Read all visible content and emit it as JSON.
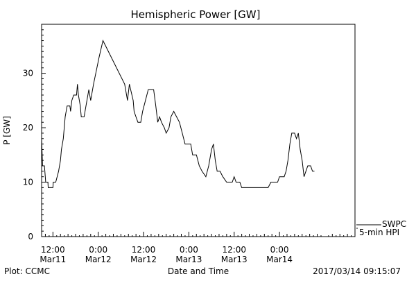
{
  "chart_data": {
    "type": "line",
    "title": "Hemispheric Power [GW]",
    "xlabel": "Date and Time",
    "ylabel": "P [GW]",
    "ylim": [
      0,
      39
    ],
    "xlim": [
      "2017-03-11 09:00",
      "2017-03-14 20:00"
    ],
    "yticks": [
      0,
      10,
      20,
      30
    ],
    "xticks": [
      {
        "time": "2017-03-11 12:00",
        "line1": "12:00",
        "line2": "Mar11"
      },
      {
        "time": "2017-03-12 00:00",
        "line1": "0:00",
        "line2": "Mar12"
      },
      {
        "time": "2017-03-12 12:00",
        "line1": "12:00",
        "line2": "Mar12"
      },
      {
        "time": "2017-03-13 00:00",
        "line1": "0:00",
        "line2": "Mar13"
      },
      {
        "time": "2017-03-13 12:00",
        "line1": "12:00",
        "line2": "Mar13"
      },
      {
        "time": "2017-03-14 00:00",
        "line1": "0:00",
        "line2": "Mar14"
      }
    ],
    "grid": false,
    "legend_placement": "bottom-right, outside plot",
    "series": [
      {
        "name": "SWPC",
        "values": []
      },
      {
        "name": "5-min HPI",
        "points": [
          [
            "2017-03-11 09:00",
            18
          ],
          [
            "2017-03-11 09:15",
            13
          ],
          [
            "2017-03-11 09:45",
            13
          ],
          [
            "2017-03-11 10:05",
            10
          ],
          [
            "2017-03-11 10:40",
            10
          ],
          [
            "2017-03-11 10:45",
            9
          ],
          [
            "2017-03-11 12:00",
            9
          ],
          [
            "2017-03-11 12:05",
            10
          ],
          [
            "2017-03-11 12:45",
            10
          ],
          [
            "2017-03-11 13:30",
            12
          ],
          [
            "2017-03-11 14:00",
            14
          ],
          [
            "2017-03-11 14:15",
            16
          ],
          [
            "2017-03-11 14:45",
            18
          ],
          [
            "2017-03-11 15:15",
            22
          ],
          [
            "2017-03-11 15:45",
            24
          ],
          [
            "2017-03-11 16:30",
            24
          ],
          [
            "2017-03-11 16:40",
            23
          ],
          [
            "2017-03-11 17:00",
            25
          ],
          [
            "2017-03-11 17:30",
            26
          ],
          [
            "2017-03-11 18:15",
            26
          ],
          [
            "2017-03-11 18:30",
            28
          ],
          [
            "2017-03-11 18:45",
            26
          ],
          [
            "2017-03-11 19:15",
            24
          ],
          [
            "2017-03-11 19:30",
            22
          ],
          [
            "2017-03-11 20:15",
            22
          ],
          [
            "2017-03-11 20:45",
            24
          ],
          [
            "2017-03-11 21:30",
            27
          ],
          [
            "2017-03-11 22:00",
            25
          ],
          [
            "2017-03-11 22:45",
            28
          ],
          [
            "2017-03-12 00:15",
            33
          ],
          [
            "2017-03-12 01:15",
            36
          ],
          [
            "2017-03-12 07:00",
            28
          ],
          [
            "2017-03-12 07:45",
            25
          ],
          [
            "2017-03-12 08:15",
            28
          ],
          [
            "2017-03-12 09:15",
            25
          ],
          [
            "2017-03-12 09:30",
            23
          ],
          [
            "2017-03-12 10:00",
            22
          ],
          [
            "2017-03-12 10:30",
            21
          ],
          [
            "2017-03-12 11:15",
            21
          ],
          [
            "2017-03-12 11:45",
            23
          ],
          [
            "2017-03-12 12:30",
            25
          ],
          [
            "2017-03-12 13:15",
            27
          ],
          [
            "2017-03-12 14:40",
            27
          ],
          [
            "2017-03-12 15:15",
            24
          ],
          [
            "2017-03-12 15:45",
            21
          ],
          [
            "2017-03-12 16:15",
            22
          ],
          [
            "2017-03-12 16:45",
            21
          ],
          [
            "2017-03-12 17:30",
            20
          ],
          [
            "2017-03-12 18:00",
            19
          ],
          [
            "2017-03-12 18:45",
            20
          ],
          [
            "2017-03-12 19:15",
            22
          ],
          [
            "2017-03-12 20:00",
            23
          ],
          [
            "2017-03-12 20:45",
            22
          ],
          [
            "2017-03-12 21:30",
            21
          ],
          [
            "2017-03-12 22:15",
            19
          ],
          [
            "2017-03-12 23:00",
            17
          ],
          [
            "2017-03-13 00:30",
            17
          ],
          [
            "2017-03-13 01:00",
            15
          ],
          [
            "2017-03-13 02:00",
            15
          ],
          [
            "2017-03-13 02:45",
            13
          ],
          [
            "2017-03-13 03:30",
            12
          ],
          [
            "2017-03-13 04:30",
            11
          ],
          [
            "2017-03-13 05:15",
            13
          ],
          [
            "2017-03-13 06:00",
            16
          ],
          [
            "2017-03-13 06:30",
            17
          ],
          [
            "2017-03-13 07:00",
            14
          ],
          [
            "2017-03-13 07:30",
            12
          ],
          [
            "2017-03-13 08:15",
            12
          ],
          [
            "2017-03-13 09:00",
            11
          ],
          [
            "2017-03-13 10:00",
            10
          ],
          [
            "2017-03-13 11:30",
            10
          ],
          [
            "2017-03-13 12:00",
            11
          ],
          [
            "2017-03-13 12:30",
            10
          ],
          [
            "2017-03-13 13:30",
            10
          ],
          [
            "2017-03-13 14:00",
            9
          ],
          [
            "2017-03-13 21:00",
            9
          ],
          [
            "2017-03-13 21:45",
            10
          ],
          [
            "2017-03-13 23:30",
            10
          ],
          [
            "2017-03-14 00:00",
            11
          ],
          [
            "2017-03-14 01:15",
            11
          ],
          [
            "2017-03-14 01:45",
            12
          ],
          [
            "2017-03-14 02:15",
            14
          ],
          [
            "2017-03-14 02:45",
            17
          ],
          [
            "2017-03-14 03:15",
            19
          ],
          [
            "2017-03-14 04:00",
            19
          ],
          [
            "2017-03-14 04:30",
            18
          ],
          [
            "2017-03-14 05:00",
            19
          ],
          [
            "2017-03-14 05:30",
            16
          ],
          [
            "2017-03-14 06:00",
            14
          ],
          [
            "2017-03-14 06:30",
            11
          ],
          [
            "2017-03-14 07:00",
            12
          ],
          [
            "2017-03-14 07:30",
            13
          ],
          [
            "2017-03-14 08:15",
            13
          ],
          [
            "2017-03-14 08:45",
            12
          ],
          [
            "2017-03-14 09:15",
            12
          ]
        ]
      }
    ]
  },
  "footer": {
    "plot_credit": "Plot: CCMC",
    "timestamp": "2017/03/14 09:15:07"
  },
  "colors": {
    "line": "#000000",
    "background": "#ffffff"
  }
}
